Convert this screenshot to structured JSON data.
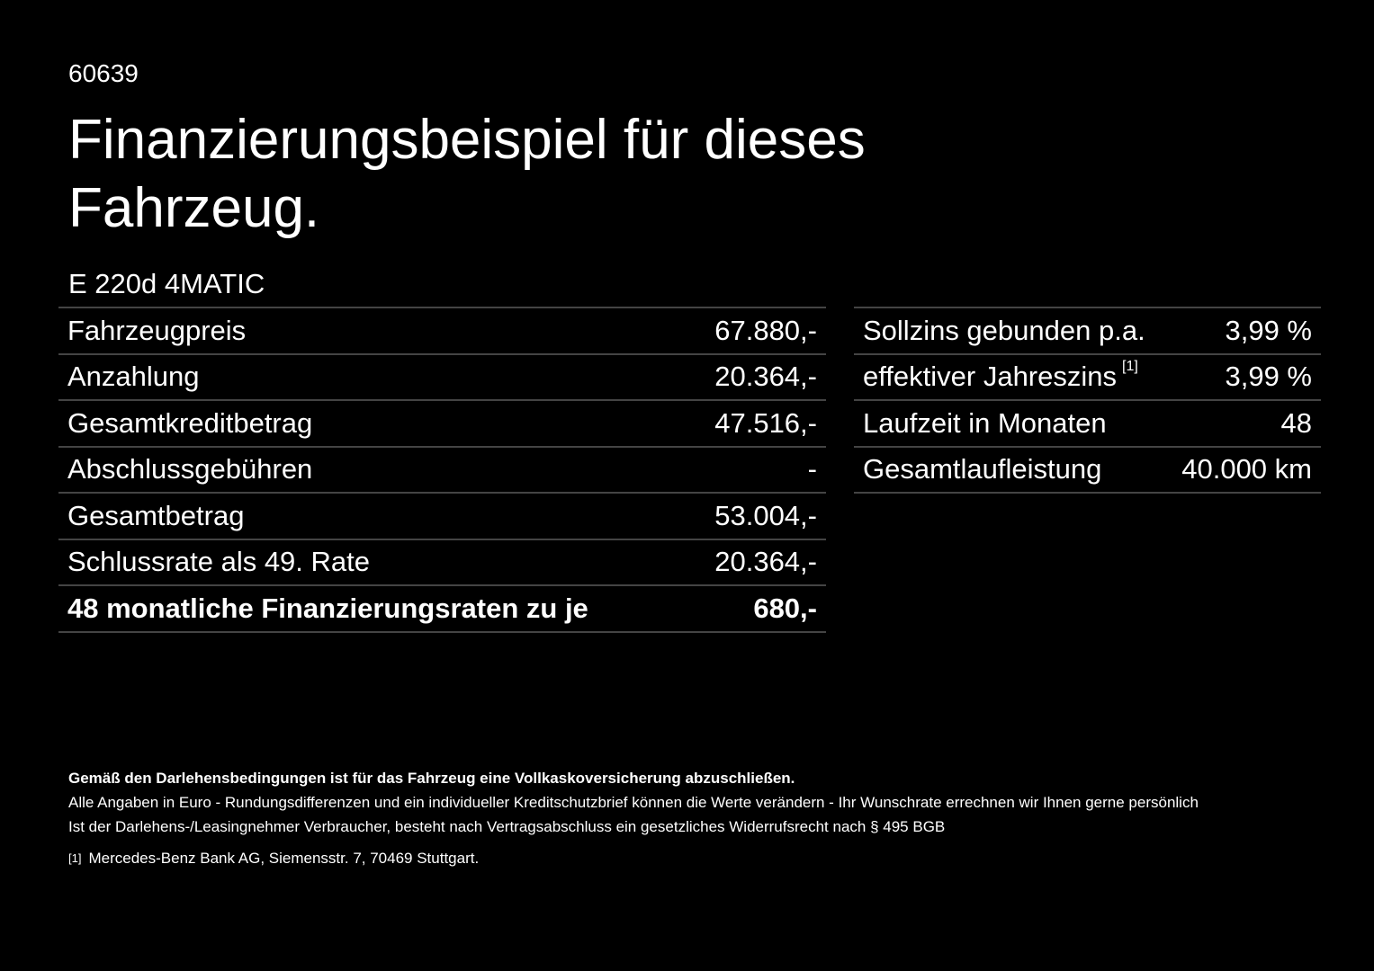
{
  "header": {
    "code": "60639",
    "title": "Finanzierungsbeispiel für dieses Fahrzeug.",
    "model": "E 220d 4MATIC"
  },
  "left_table": {
    "rows": [
      [
        "Fahrzeugpreis",
        "67.880,-"
      ],
      [
        "Anzahlung",
        "20.364,-"
      ],
      [
        "Gesamtkreditbetrag",
        "47.516,-"
      ],
      [
        "Abschlussgebühren",
        "-"
      ],
      [
        "Gesamtbetrag",
        "53.004,-"
      ],
      [
        "Schlussrate als 49. Rate",
        "20.364,-"
      ],
      [
        "48 monatliche Finanzierungsraten zu je",
        "680,-"
      ]
    ]
  },
  "right_table": {
    "rows": [
      [
        "Sollzins gebunden p.a.",
        "3,99 %"
      ],
      [
        "effektiver Jahreszins",
        "3,99 %"
      ],
      [
        "Laufzeit in Monaten",
        "48"
      ],
      [
        "Gesamtlaufleistung",
        "40.000 km"
      ]
    ],
    "footnote_marker": "[1]"
  },
  "footer": {
    "bold_note": "Gemäß den Darlehensbedingungen ist für das Fahrzeug eine Vollkaskoversicherung abzuschließen.",
    "lines": [
      "Alle Angaben in Euro - Rundungsdifferenzen und ein individueller Kreditschutzbrief können die Werte verändern - Ihr Wunschrate errechnen wir Ihnen gerne persönlich",
      "Ist der Darlehens-/Leasingnehmer Verbraucher, besteht nach Vertragsabschluss ein gesetzliches Widerrufsrecht nach § 495 BGB"
    ],
    "footnote_marker": "[1]",
    "footnote": "Mercedes-Benz Bank AG, Siemensstr. 7, 70469 Stuttgart."
  }
}
